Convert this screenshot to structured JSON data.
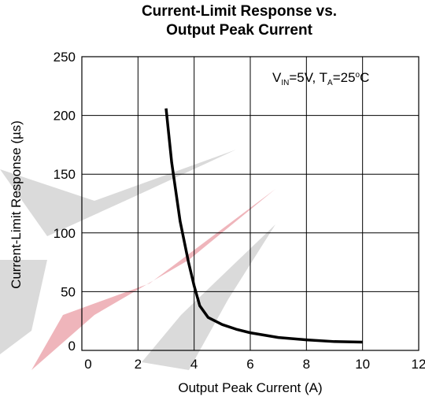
{
  "chart_data": {
    "type": "line",
    "title": [
      "Current-Limit Response vs.",
      "Output Peak Current"
    ],
    "x_label": "Output Peak Current (A)",
    "y_label": "Current-Limit Response (µs)",
    "annotation": [
      "V",
      "IN",
      "=5V, T",
      "A",
      "=25",
      "o",
      "C"
    ],
    "x": [
      3,
      3.2,
      3.5,
      3.8,
      4,
      4.2,
      4.5,
      5,
      5.5,
      6,
      7,
      8,
      9,
      10
    ],
    "values": [
      206,
      160,
      110,
      75,
      55,
      38,
      28,
      22,
      18,
      15,
      11,
      9,
      7.5,
      7
    ],
    "color": "#000000",
    "xlim": [
      0,
      12
    ],
    "xticks": [
      0,
      2,
      4,
      6,
      8,
      10,
      12
    ],
    "ylim": [
      0,
      250
    ],
    "yticks": [
      0,
      50,
      100,
      150,
      200,
      250
    ],
    "grid": true
  }
}
